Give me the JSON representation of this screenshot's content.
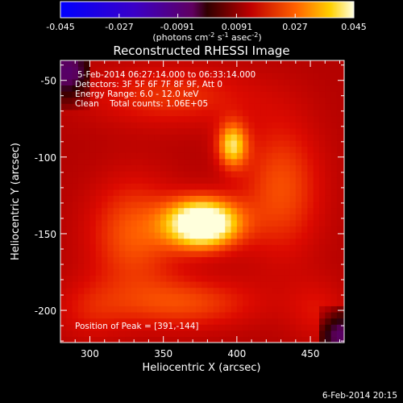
{
  "colorbar": {
    "ticks": [
      "-0.045",
      "-0.027",
      "-0.0091",
      "0.0091",
      "0.027",
      "0.045"
    ],
    "label": "(photons cm",
    "label_sup1": "-2",
    "label_mid": " s",
    "label_sup2": "-1",
    "label_end": " asec",
    "label_sup3": "-2",
    "label_close": ")",
    "range": [
      -0.045,
      0.045
    ]
  },
  "chart_data": {
    "type": "heatmap",
    "title": "Reconstructed RHESSI Image",
    "xlabel": "Heliocentric X (arcsec)",
    "ylabel": "Heliocentric Y (arcsec)",
    "x_ticks": [
      300,
      350,
      400,
      450
    ],
    "y_ticks": [
      -50,
      -100,
      -150,
      -200
    ],
    "xlim": [
      280,
      473
    ],
    "ylim": [
      -221,
      -37
    ],
    "peak": {
      "x": 391,
      "y": -144
    },
    "sources": [
      {
        "x": 377,
        "y": -143,
        "amp": 0.045,
        "sx": 17,
        "sy": 11
      },
      {
        "x": 397,
        "y": -92,
        "amp": 0.026,
        "sx": 7,
        "sy": 10
      },
      {
        "x": 330,
        "y": -150,
        "amp": 0.014,
        "sx": 22,
        "sy": 26
      },
      {
        "x": 430,
        "y": -120,
        "amp": 0.013,
        "sx": 20,
        "sy": 32
      },
      {
        "x": 365,
        "y": -195,
        "amp": 0.012,
        "sx": 35,
        "sy": 12
      },
      {
        "x": 355,
        "y": -60,
        "amp": 0.01,
        "sx": 40,
        "sy": 14
      },
      {
        "x": 300,
        "y": -200,
        "amp": 0.006,
        "sx": 18,
        "sy": 15
      },
      {
        "x": 455,
        "y": -200,
        "amp": 0.006,
        "sx": 15,
        "sy": 15
      }
    ],
    "background": 0.012,
    "annotations": {
      "time_range": "5-Feb-2014 06:27:14.000 to 06:33:14.000",
      "detectors": "Detectors: 3F 5F 6F 7F 8F 9F, Att 0",
      "energy": "Energy Range: 6.0 - 12.0 keV",
      "clean": "Clean    Total counts: 1.06E+05",
      "peak_text": "Position of Peak = [391,-144]"
    }
  },
  "footer": {
    "timestamp": "6-Feb-2014 20:15"
  }
}
